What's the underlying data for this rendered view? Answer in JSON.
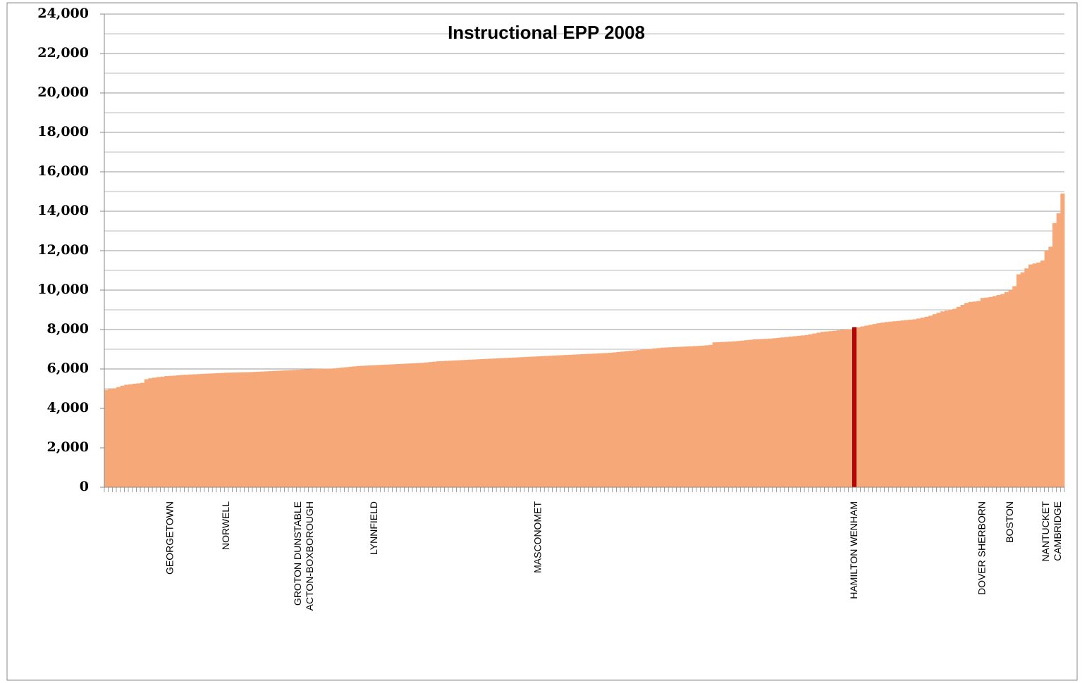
{
  "chart_data": {
    "type": "bar",
    "title": "Instructional EPP 2008",
    "categories": [
      null,
      null,
      null,
      null,
      null,
      null,
      null,
      null,
      null,
      null,
      null,
      null,
      null,
      null,
      null,
      null,
      "GEORGETOWN",
      null,
      null,
      null,
      null,
      null,
      null,
      null,
      null,
      null,
      null,
      null,
      null,
      null,
      "NORWELL",
      null,
      null,
      null,
      null,
      null,
      null,
      null,
      null,
      null,
      null,
      null,
      null,
      null,
      null,
      null,
      null,
      null,
      "GROTON DUNSTABLE",
      null,
      null,
      "ACTON-BOXBOROUGH",
      null,
      null,
      null,
      null,
      null,
      null,
      null,
      null,
      null,
      null,
      null,
      null,
      null,
      null,
      null,
      "LYNNFIELD",
      null,
      null,
      null,
      null,
      null,
      null,
      null,
      null,
      null,
      null,
      null,
      null,
      null,
      null,
      null,
      null,
      null,
      null,
      null,
      null,
      null,
      null,
      null,
      null,
      null,
      null,
      null,
      null,
      null,
      null,
      null,
      null,
      null,
      null,
      null,
      null,
      null,
      null,
      null,
      null,
      "MASCONOMET",
      null,
      null,
      null,
      null,
      null,
      null,
      null,
      null,
      null,
      null,
      null,
      null,
      null,
      null,
      null,
      null,
      null,
      null,
      null,
      null,
      null,
      null,
      null,
      null,
      null,
      null,
      null,
      null,
      null,
      null,
      null,
      null,
      null,
      null,
      null,
      null,
      null,
      null,
      null,
      null,
      null,
      null,
      null,
      null,
      null,
      null,
      null,
      null,
      null,
      null,
      null,
      null,
      null,
      null,
      null,
      null,
      null,
      null,
      null,
      null,
      null,
      null,
      null,
      null,
      null,
      null,
      null,
      null,
      null,
      null,
      null,
      null,
      null,
      null,
      null,
      null,
      null,
      null,
      "HAMILTON WENHAM",
      null,
      null,
      null,
      null,
      null,
      null,
      null,
      null,
      null,
      null,
      null,
      null,
      null,
      null,
      null,
      null,
      null,
      null,
      null,
      null,
      null,
      null,
      null,
      null,
      null,
      null,
      null,
      null,
      null,
      null,
      null,
      "DOVER SHERBORN",
      null,
      null,
      null,
      null,
      null,
      null,
      "BOSTON",
      null,
      null,
      null,
      null,
      null,
      null,
      null,
      null,
      "NANTUCKET",
      null,
      null,
      "CAMBRIDGE",
      null
    ],
    "values": [
      4950,
      4980,
      5020,
      5080,
      5150,
      5200,
      5220,
      5250,
      5270,
      5300,
      5480,
      5530,
      5560,
      5590,
      5610,
      5640,
      5650,
      5660,
      5680,
      5700,
      5710,
      5720,
      5730,
      5740,
      5750,
      5760,
      5770,
      5780,
      5790,
      5800,
      5810,
      5815,
      5820,
      5825,
      5830,
      5835,
      5840,
      5850,
      5860,
      5870,
      5880,
      5890,
      5900,
      5910,
      5920,
      5930,
      5940,
      5950,
      5960,
      5970,
      5980,
      5990,
      6000,
      6005,
      6010,
      6015,
      6020,
      6030,
      6050,
      6070,
      6090,
      6110,
      6130,
      6150,
      6160,
      6170,
      6180,
      6190,
      6200,
      6210,
      6220,
      6230,
      6240,
      6250,
      6260,
      6270,
      6280,
      6290,
      6300,
      6310,
      6330,
      6350,
      6370,
      6390,
      6400,
      6410,
      6420,
      6430,
      6440,
      6450,
      6460,
      6470,
      6480,
      6490,
      6500,
      6510,
      6520,
      6530,
      6540,
      6550,
      6560,
      6570,
      6580,
      6590,
      6600,
      6610,
      6620,
      6630,
      6640,
      6650,
      6660,
      6670,
      6680,
      6690,
      6700,
      6710,
      6720,
      6730,
      6740,
      6750,
      6760,
      6770,
      6780,
      6790,
      6800,
      6810,
      6820,
      6840,
      6860,
      6880,
      6900,
      6920,
      6940,
      6960,
      6980,
      7000,
      7020,
      7040,
      7060,
      7080,
      7090,
      7100,
      7110,
      7120,
      7130,
      7140,
      7150,
      7160,
      7170,
      7180,
      7200,
      7220,
      7350,
      7360,
      7370,
      7380,
      7390,
      7400,
      7420,
      7440,
      7460,
      7480,
      7500,
      7510,
      7520,
      7530,
      7540,
      7560,
      7580,
      7600,
      7620,
      7640,
      7660,
      7680,
      7700,
      7720,
      7760,
      7800,
      7840,
      7880,
      7900,
      7920,
      7940,
      7960,
      7980,
      8000,
      8020,
      8100,
      8120,
      8160,
      8200,
      8240,
      8280,
      8320,
      8350,
      8380,
      8400,
      8420,
      8440,
      8460,
      8480,
      8500,
      8520,
      8560,
      8600,
      8650,
      8700,
      8780,
      8850,
      8920,
      8960,
      9000,
      9050,
      9150,
      9250,
      9350,
      9400,
      9420,
      9450,
      9600,
      9620,
      9650,
      9700,
      9750,
      9800,
      9900,
      10000,
      10200,
      10800,
      10900,
      11100,
      11300,
      11350,
      11400,
      11500,
      12000,
      12200,
      13400,
      13900,
      14900
    ],
    "color": "#f6a878",
    "highlight": {
      "index": 187,
      "color": "#c00000"
    },
    "ylim": [
      0,
      24000
    ],
    "yticks": [
      0,
      {
        "value": 2000,
        "label": "2,000"
      },
      {
        "value": 4000,
        "label": "4,000"
      },
      {
        "value": 6000,
        "label": "6,000"
      },
      {
        "value": 8000,
        "label": "8,000"
      },
      {
        "value": 10000,
        "label": "10,000"
      },
      {
        "value": 12000,
        "label": "12,000"
      },
      {
        "value": 14000,
        "label": "14,000"
      },
      {
        "value": 16000,
        "label": "16,000"
      },
      {
        "value": 18000,
        "label": "18,000"
      },
      {
        "value": 20000,
        "label": "20,000"
      },
      {
        "value": 22000,
        "label": "22,000"
      },
      {
        "value": 24000,
        "label": "24,000"
      }
    ],
    "minor_yticks": [
      1000,
      3000,
      5000,
      7000,
      9000,
      11000,
      13000,
      15000,
      17000,
      19000,
      21000,
      23000
    ],
    "grid": true
  }
}
